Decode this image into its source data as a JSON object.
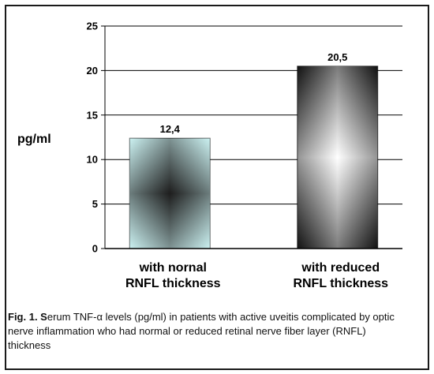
{
  "chart_data": {
    "type": "bar",
    "categories": [
      "with nornal RNFL thickness",
      "with reduced RNFL thickness"
    ],
    "category_lines": [
      [
        "with nornal",
        "RNFL thickness"
      ],
      [
        "with reduced",
        "RNFL thickness"
      ]
    ],
    "values": [
      12.4,
      20.5
    ],
    "data_labels": [
      "12,4",
      "20,5"
    ],
    "ylabel": "pg/ml",
    "xlabel": "",
    "ylim": [
      0,
      25
    ],
    "yticks": [
      0,
      5,
      10,
      15,
      20,
      25
    ],
    "grid": true,
    "legend": "none"
  },
  "caption": {
    "prefix": "Fig. 1. S",
    "text": "erum TNF-α levels (pg/ml) in patients with active uveitis complicated by optic nerve inflammation who had normal or reduced retinal nerve fiber layer (RNFL) thickness"
  },
  "colors": {
    "bar1_center": "#1e1e1e",
    "bar1_edge": "#cdf3f3",
    "bar2_center": "#ffffff",
    "bar2_edge": "#111111",
    "grid": "#000000"
  }
}
